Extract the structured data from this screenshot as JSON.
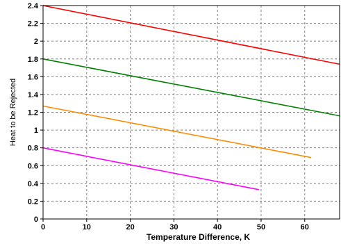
{
  "chart_data": {
    "type": "line",
    "title": "",
    "xlabel": "Temperature Difference, K",
    "ylabel": "Heat to be Rejected",
    "xlim": [
      0,
      68
    ],
    "ylim": [
      0,
      2.4
    ],
    "x_ticks": [
      0,
      10,
      20,
      30,
      40,
      50,
      60
    ],
    "y_ticks": [
      0,
      0.2,
      0.4,
      0.6,
      0.8,
      1,
      1.2,
      1.4,
      1.6,
      1.8,
      2,
      2.2,
      2.4
    ],
    "grid": true,
    "legend": "none",
    "series": [
      {
        "color": "#ff0000",
        "x": [
          0,
          68
        ],
        "y": [
          2.4,
          1.74
        ]
      },
      {
        "color": "#008000",
        "x": [
          0,
          68
        ],
        "y": [
          1.8,
          1.16
        ]
      },
      {
        "color": "#ff8c00",
        "x": [
          0,
          61.5
        ],
        "y": [
          1.27,
          0.69
        ]
      },
      {
        "color": "#ff00ff",
        "x": [
          0,
          49.5
        ],
        "y": [
          0.8,
          0.33
        ]
      }
    ]
  }
}
